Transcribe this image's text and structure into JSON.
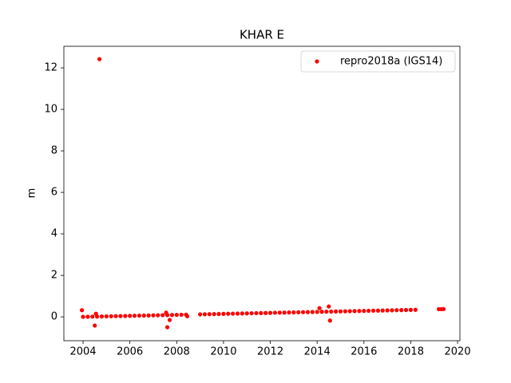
{
  "chart_data": {
    "type": "scatter",
    "title": "KHAR E",
    "ylabel": "m",
    "xlim": [
      2003.18,
      2020.1
    ],
    "ylim": [
      -1.15,
      13.04
    ],
    "xticks": [
      2004,
      2006,
      2008,
      2010,
      2012,
      2014,
      2016,
      2018,
      2020
    ],
    "yticks": [
      0,
      2,
      4,
      6,
      8,
      10,
      12
    ],
    "legend": "upper right",
    "series": [
      {
        "name": "repro2018a (IGS14)",
        "color": "#ff0000",
        "x": [
          2004,
          2004.2,
          2004.4,
          2004.6,
          2004.8,
          2005,
          2005.2,
          2005.4,
          2005.6,
          2005.8,
          2006,
          2006.2,
          2006.4,
          2006.6,
          2006.8,
          2007,
          2007.2,
          2007.4,
          2007.6,
          2007.8,
          2008,
          2008.2,
          2008.4,
          2009,
          2009.2,
          2009.4,
          2009.6,
          2009.8,
          2010,
          2010.2,
          2010.4,
          2010.6,
          2010.8,
          2011,
          2011.2,
          2011.4,
          2011.6,
          2011.8,
          2012,
          2012.2,
          2012.4,
          2012.6,
          2012.8,
          2013,
          2013.2,
          2013.4,
          2013.6,
          2013.8,
          2014,
          2014.2,
          2014.4,
          2014.6,
          2014.8,
          2015,
          2015.2,
          2015.4,
          2015.6,
          2015.8,
          2016,
          2016.2,
          2016.4,
          2016.6,
          2016.8,
          2017,
          2017.2,
          2017.4,
          2017.6,
          2017.8,
          2018,
          2018.2,
          2019.2,
          2019.3,
          2019.4,
          2004.7,
          2003.95,
          2004.5,
          2004.55,
          2007.55,
          2007.6,
          2007.7,
          2014.1,
          2014.5,
          2014.55,
          2008.45
        ],
        "values": [
          0,
          0.005,
          0.01,
          0.014,
          0.019,
          0.024,
          0.029,
          0.034,
          0.038,
          0.043,
          0.048,
          0.053,
          0.058,
          0.062,
          0.067,
          0.072,
          0.077,
          0.082,
          0.086,
          0.091,
          0.096,
          0.101,
          0.106,
          0.12,
          0.125,
          0.13,
          0.134,
          0.139,
          0.144,
          0.149,
          0.154,
          0.158,
          0.163,
          0.168,
          0.173,
          0.178,
          0.182,
          0.187,
          0.192,
          0.197,
          0.202,
          0.206,
          0.211,
          0.216,
          0.221,
          0.226,
          0.23,
          0.235,
          0.24,
          0.245,
          0.25,
          0.254,
          0.259,
          0.264,
          0.269,
          0.274,
          0.278,
          0.283,
          0.288,
          0.293,
          0.298,
          0.302,
          0.307,
          0.312,
          0.317,
          0.322,
          0.326,
          0.331,
          0.336,
          0.341,
          0.37,
          0.37,
          0.375,
          12.42,
          0.32,
          -0.42,
          0.15,
          0.2,
          -0.5,
          -0.15,
          0.42,
          0.5,
          -0.18,
          0.03
        ]
      }
    ]
  }
}
